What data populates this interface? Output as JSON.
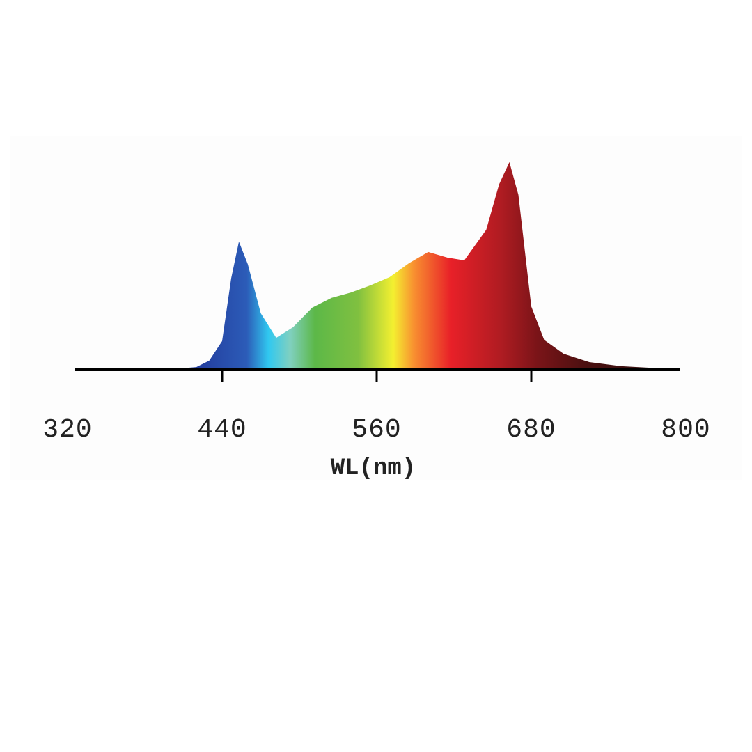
{
  "chart_data": {
    "type": "area",
    "x_label": "WL(nm)",
    "x": [
      380,
      400,
      420,
      430,
      440,
      447,
      453,
      460,
      470,
      482,
      495,
      510,
      525,
      540,
      555,
      570,
      585,
      600,
      615,
      628,
      645,
      655,
      663,
      670,
      680,
      690,
      705,
      725,
      750,
      780,
      795
    ],
    "values": [
      0,
      0.003,
      0.013,
      0.044,
      0.138,
      0.44,
      0.617,
      0.507,
      0.272,
      0.154,
      0.205,
      0.299,
      0.346,
      0.372,
      0.406,
      0.446,
      0.513,
      0.567,
      0.54,
      0.527,
      0.674,
      0.893,
      1,
      0.842,
      0.305,
      0.144,
      0.077,
      0.037,
      0.017,
      0.007,
      0
    ],
    "xlim": [
      320,
      800
    ],
    "xticks": [
      320,
      440,
      560,
      680,
      800
    ],
    "ylim": [
      0,
      1.1
    ]
  }
}
